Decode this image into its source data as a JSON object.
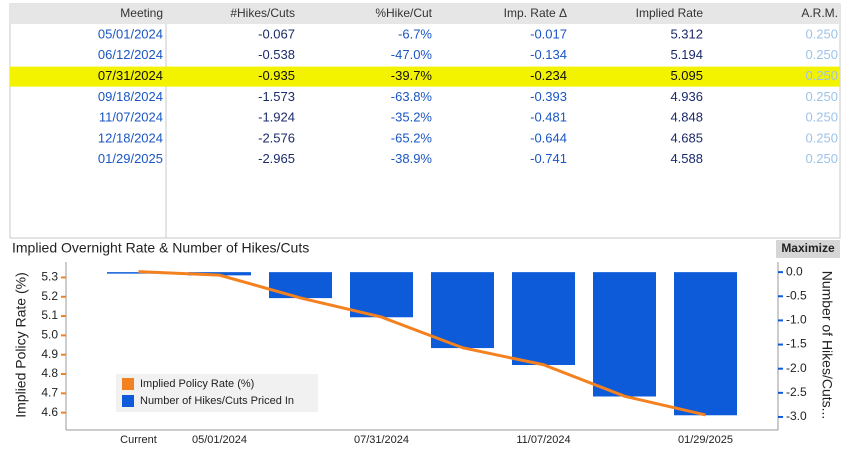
{
  "table": {
    "columns": [
      "Meeting",
      "#Hikes/Cuts",
      "%Hike/Cut",
      "Imp. Rate Δ",
      "Implied Rate",
      "A.R.M."
    ],
    "rows": [
      [
        "05/01/2024",
        "-0.067",
        "-6.7%",
        "-0.017",
        "5.312",
        "0.250"
      ],
      [
        "06/12/2024",
        "-0.538",
        "-47.0%",
        "-0.134",
        "5.194",
        "0.250"
      ],
      [
        "07/31/2024",
        "-0.935",
        "-39.7%",
        "-0.234",
        "5.095",
        "0.250"
      ],
      [
        "09/18/2024",
        "-1.573",
        "-63.8%",
        "-0.393",
        "4.936",
        "0.250"
      ],
      [
        "11/07/2024",
        "-1.924",
        "-35.2%",
        "-0.481",
        "4.848",
        "0.250"
      ],
      [
        "12/18/2024",
        "-2.576",
        "-65.2%",
        "-0.644",
        "4.685",
        "0.250"
      ],
      [
        "01/29/2025",
        "-2.965",
        "-38.9%",
        "-0.741",
        "4.588",
        "0.250"
      ]
    ],
    "highlighted_row": 2
  },
  "toolbar": {
    "button": "Maximize"
  },
  "chart_data": {
    "type": "bar",
    "title": "Implied Overnight Rate & Number of Hikes/Cuts",
    "y_label": "Implied Policy Rate (%)",
    "y2_label": "Number of Hikes/Cuts...",
    "categories": [
      "Current",
      "05/01/2024",
      null,
      "07/31/2024",
      null,
      "11/07/2024",
      null,
      "01/29/2025"
    ],
    "series": [
      {
        "name": "Implied Policy Rate (%)",
        "type": "line",
        "color": "#f4811f",
        "values": [
          5.33,
          5.312,
          5.194,
          5.095,
          4.936,
          4.848,
          4.685,
          4.588
        ]
      },
      {
        "name": "Number of Hikes/Cuts Priced In",
        "type": "bar",
        "axis": "y2",
        "color": "#0d5bd8",
        "values": [
          0,
          -0.067,
          -0.538,
          -0.935,
          -1.573,
          -1.924,
          -2.576,
          -2.965
        ]
      }
    ],
    "ylim": [
      4.51,
      5.38
    ],
    "yticks": [
      4.6,
      4.7,
      4.8,
      4.9,
      {
        "value": 5,
        "label": "5.0"
      },
      5.1,
      5.2,
      5.3
    ],
    "y2lim": [
      -3.27,
      0.21
    ],
    "y2ticks": [
      {
        "value": 0,
        "label": "0.0"
      },
      -0.5,
      {
        "value": -1,
        "label": "-1.0"
      },
      -1.5,
      {
        "value": -2,
        "label": "-2.0"
      },
      -2.5,
      {
        "value": -3,
        "label": "-3.0"
      }
    ],
    "legend": "lower-left",
    "grid": false
  }
}
